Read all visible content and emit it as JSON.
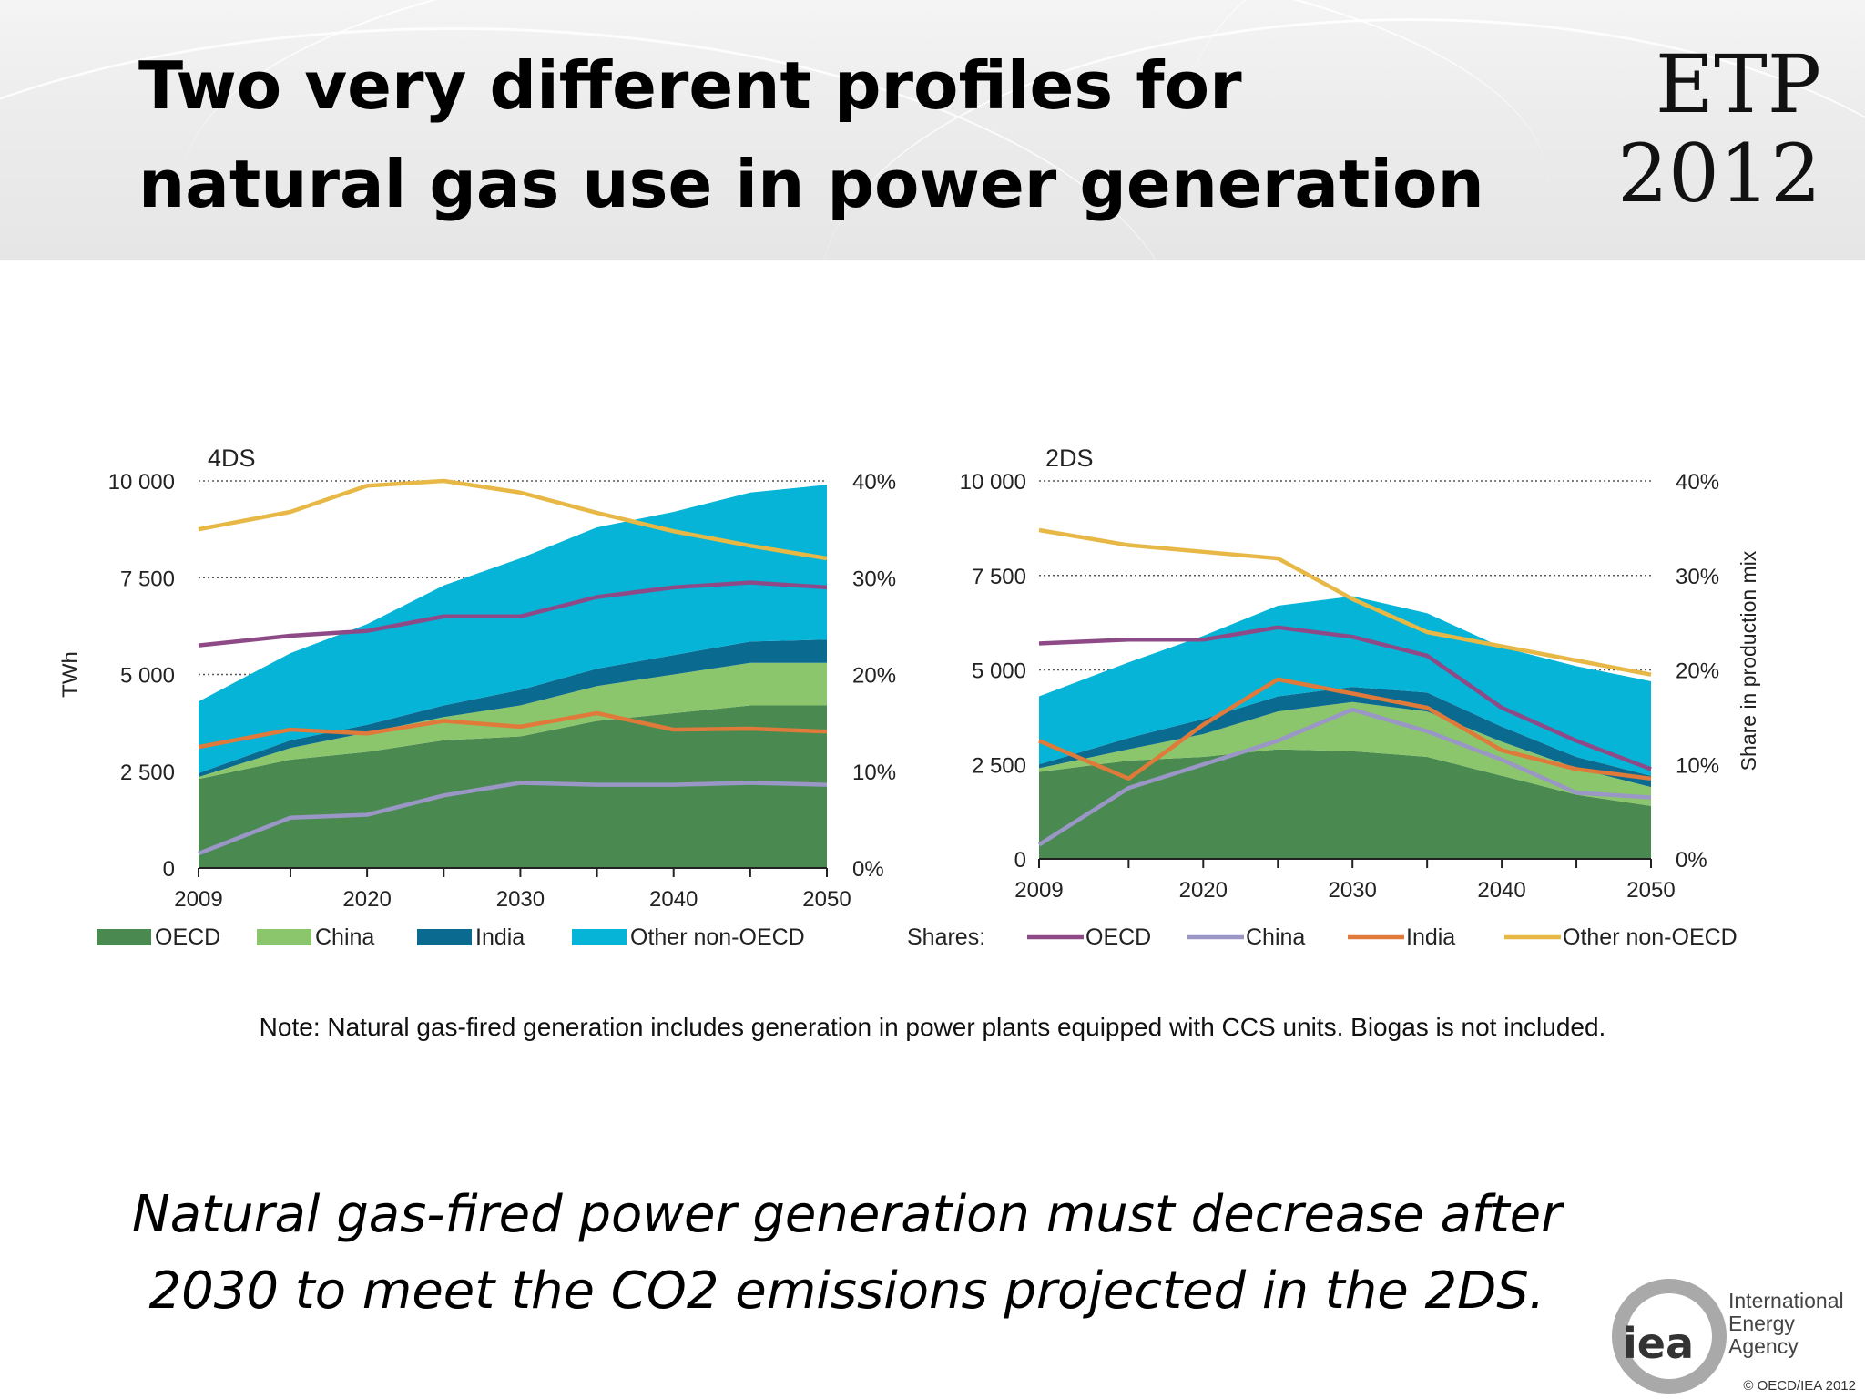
{
  "slide": {
    "title": "Two very different profiles for natural gas use in power generation",
    "badge_line1": "ETP",
    "badge_line2": "2012",
    "note": "Note: Natural gas-fired generation includes generation in power plants equipped with CCS units. Biogas is not included.",
    "conclusion": "Natural gas-fired power generation must decrease after 2030 to meet the CO2 emissions projected in the 2DS.",
    "logo_name_line1": "International",
    "logo_name_line2": "Energy Agency",
    "logo_mark": "iea",
    "copyright": "© OECD/IEA 2012"
  },
  "legend": {
    "areas": [
      {
        "label": "OECD",
        "color": "#4a8a51"
      },
      {
        "label": "China",
        "color": "#8cc66c"
      },
      {
        "label": "India",
        "color": "#0b6a8f"
      },
      {
        "label": "Other non-OECD",
        "color": "#05b4d6"
      }
    ],
    "shares_label": "Shares:",
    "lines": [
      {
        "label": "OECD",
        "color": "#8e4a86"
      },
      {
        "label": "China",
        "color": "#9a96c6"
      },
      {
        "label": "India",
        "color": "#e07a3a"
      },
      {
        "label": "Other non-OECD",
        "color": "#e8b847"
      }
    ]
  },
  "chart_data": [
    {
      "type": "area",
      "title": "4DS",
      "ylabel": "TWh",
      "y2label": "",
      "ylim": [
        0,
        10000
      ],
      "y2lim": [
        0,
        40
      ],
      "yticks": [
        "0",
        "2 500",
        "5 000",
        "7 500",
        "10 000"
      ],
      "y2ticks": [
        "0%",
        "10%",
        "20%",
        "30%",
        "40%"
      ],
      "x": [
        2009,
        2015,
        2020,
        2025,
        2030,
        2035,
        2040,
        2045,
        2050
      ],
      "xticks": [
        "2009",
        "2020",
        "2030",
        "2040",
        "2050"
      ],
      "grid": "dotted horizontal",
      "stacked_areas": [
        {
          "name": "OECD",
          "values": [
            2300,
            2800,
            3000,
            3300,
            3400,
            3800,
            4000,
            4200,
            4200
          ]
        },
        {
          "name": "China",
          "values": [
            50,
            300,
            500,
            600,
            800,
            900,
            1000,
            1100,
            1100
          ]
        },
        {
          "name": "India",
          "values": [
            100,
            200,
            200,
            300,
            400,
            450,
            500,
            550,
            600
          ]
        },
        {
          "name": "Other non-OECD",
          "values": [
            1850,
            2250,
            2600,
            3100,
            3400,
            3650,
            3700,
            3850,
            4000
          ]
        }
      ],
      "share_lines": [
        {
          "name": "OECD",
          "values": [
            23,
            24,
            24.5,
            26,
            26,
            28,
            29,
            29.5,
            29
          ]
        },
        {
          "name": "China",
          "values": [
            1.5,
            5.2,
            5.5,
            7.5,
            8.8,
            8.6,
            8.6,
            8.8,
            8.6
          ]
        },
        {
          "name": "India",
          "values": [
            12.5,
            14.3,
            13.9,
            15.2,
            14.6,
            16,
            14.3,
            14.4,
            14.1
          ]
        },
        {
          "name": "Other non-OECD",
          "values": [
            35,
            36.8,
            39.5,
            40,
            38.8,
            36.7,
            34.8,
            33.3,
            32
          ]
        }
      ]
    },
    {
      "type": "area",
      "title": "2DS",
      "ylabel": "",
      "y2label": "Share in production mix",
      "ylim": [
        0,
        10000
      ],
      "y2lim": [
        0,
        40
      ],
      "yticks": [
        "0",
        "2 500",
        "5 000",
        "7 500",
        "10 000"
      ],
      "y2ticks": [
        "0%",
        "10%",
        "20%",
        "30%",
        "40%"
      ],
      "x": [
        2009,
        2015,
        2020,
        2025,
        2030,
        2035,
        2040,
        2045,
        2050
      ],
      "xticks": [
        "2009",
        "2020",
        "2030",
        "2040",
        "2050"
      ],
      "grid": "dotted horizontal",
      "stacked_areas": [
        {
          "name": "OECD",
          "values": [
            2300,
            2600,
            2700,
            2900,
            2850,
            2700,
            2200,
            1700,
            1400
          ]
        },
        {
          "name": "China",
          "values": [
            100,
            300,
            600,
            1000,
            1300,
            1200,
            900,
            700,
            500
          ]
        },
        {
          "name": "India",
          "values": [
            100,
            300,
            400,
            400,
            400,
            500,
            400,
            300,
            300
          ]
        },
        {
          "name": "Other non-OECD",
          "values": [
            1800,
            2000,
            2200,
            2400,
            2400,
            2100,
            2100,
            2400,
            2500
          ]
        }
      ],
      "share_lines": [
        {
          "name": "OECD",
          "values": [
            22.8,
            23.2,
            23.2,
            24.5,
            23.5,
            21.5,
            16,
            12.5,
            9.5
          ]
        },
        {
          "name": "China",
          "values": [
            1.5,
            7.5,
            10,
            12.5,
            15.8,
            13.5,
            10.5,
            7,
            6.5
          ]
        },
        {
          "name": "India",
          "values": [
            12.5,
            8.5,
            14.2,
            19,
            17.5,
            16,
            11.5,
            9.5,
            8.5
          ]
        },
        {
          "name": "Other non-OECD",
          "values": [
            34.8,
            33.2,
            32.5,
            31.8,
            27.5,
            24,
            22.5,
            21,
            19.5
          ]
        }
      ]
    }
  ]
}
